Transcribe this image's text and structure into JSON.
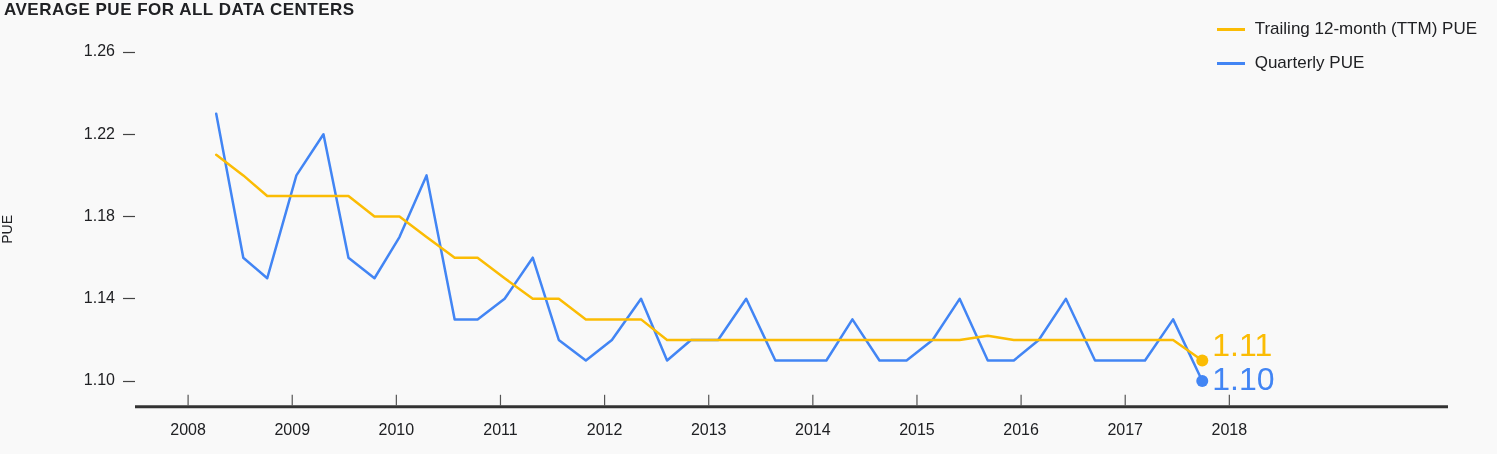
{
  "chart_data": {
    "type": "line",
    "title": "AVERAGE PUE FOR ALL DATA CENTERS",
    "ylabel": "PUE",
    "x": [
      2008.27,
      2008.53,
      2008.76,
      2009.04,
      2009.3,
      2009.54,
      2009.79,
      2010.03,
      2010.29,
      2010.56,
      2010.78,
      2011.04,
      2011.31,
      2011.56,
      2011.82,
      2012.07,
      2012.35,
      2012.6,
      2012.83,
      2013.09,
      2013.36,
      2013.64,
      2013.87,
      2014.13,
      2014.38,
      2014.64,
      2014.9,
      2015.15,
      2015.41,
      2015.68,
      2015.93,
      2016.17,
      2016.43,
      2016.71,
      2016.94,
      2017.19,
      2017.46,
      2017.74
    ],
    "series": [
      {
        "name": "Trailing 12-month (TTM) PUE",
        "color": "#fbbc04",
        "values": [
          1.21,
          1.2,
          1.19,
          1.19,
          1.19,
          1.19,
          1.18,
          1.18,
          1.17,
          1.16,
          1.16,
          1.15,
          1.14,
          1.14,
          1.13,
          1.13,
          1.13,
          1.12,
          1.12,
          1.12,
          1.12,
          1.12,
          1.12,
          1.12,
          1.12,
          1.12,
          1.12,
          1.12,
          1.12,
          1.122,
          1.12,
          1.12,
          1.12,
          1.12,
          1.12,
          1.12,
          1.12,
          1.11
        ],
        "value_labels": [
          null,
          null,
          null,
          null,
          null,
          null,
          null,
          null,
          null,
          null,
          null,
          null,
          null,
          null,
          null,
          null,
          null,
          null,
          null,
          null,
          null,
          null,
          null,
          null,
          null,
          null,
          null,
          null,
          null,
          null,
          null,
          null,
          null,
          null,
          null,
          null,
          null,
          "1.11"
        ]
      },
      {
        "name": "Quarterly PUE",
        "color": "#4285f4",
        "values": [
          1.23,
          1.16,
          1.15,
          1.2,
          1.22,
          1.16,
          1.15,
          1.17,
          1.2,
          1.13,
          1.13,
          1.14,
          1.16,
          1.12,
          1.11,
          1.12,
          1.14,
          1.11,
          1.12,
          1.12,
          1.14,
          1.11,
          1.11,
          1.11,
          1.13,
          1.11,
          1.11,
          1.12,
          1.14,
          1.11,
          1.11,
          1.12,
          1.14,
          1.11,
          1.11,
          1.11,
          1.13,
          1.1
        ],
        "value_labels": [
          null,
          null,
          null,
          null,
          null,
          null,
          null,
          null,
          null,
          null,
          null,
          null,
          null,
          null,
          null,
          null,
          null,
          null,
          null,
          null,
          null,
          null,
          null,
          null,
          null,
          null,
          null,
          null,
          null,
          null,
          null,
          null,
          null,
          null,
          null,
          null,
          null,
          "1.10"
        ]
      }
    ],
    "xlim": [
      2007.49,
      2020.1
    ],
    "xticks": [
      2008,
      2009,
      2010,
      2011,
      2012,
      2013,
      2014,
      2015,
      2016,
      2017,
      2018
    ],
    "ylim": [
      1.0875,
      1.26
    ],
    "yticks": [
      {
        "value": 1.1,
        "label": "1.10"
      },
      1.14,
      1.18,
      1.22,
      1.26
    ],
    "grid": false,
    "legend": "top right",
    "marker": "none",
    "line_style": "solid"
  }
}
